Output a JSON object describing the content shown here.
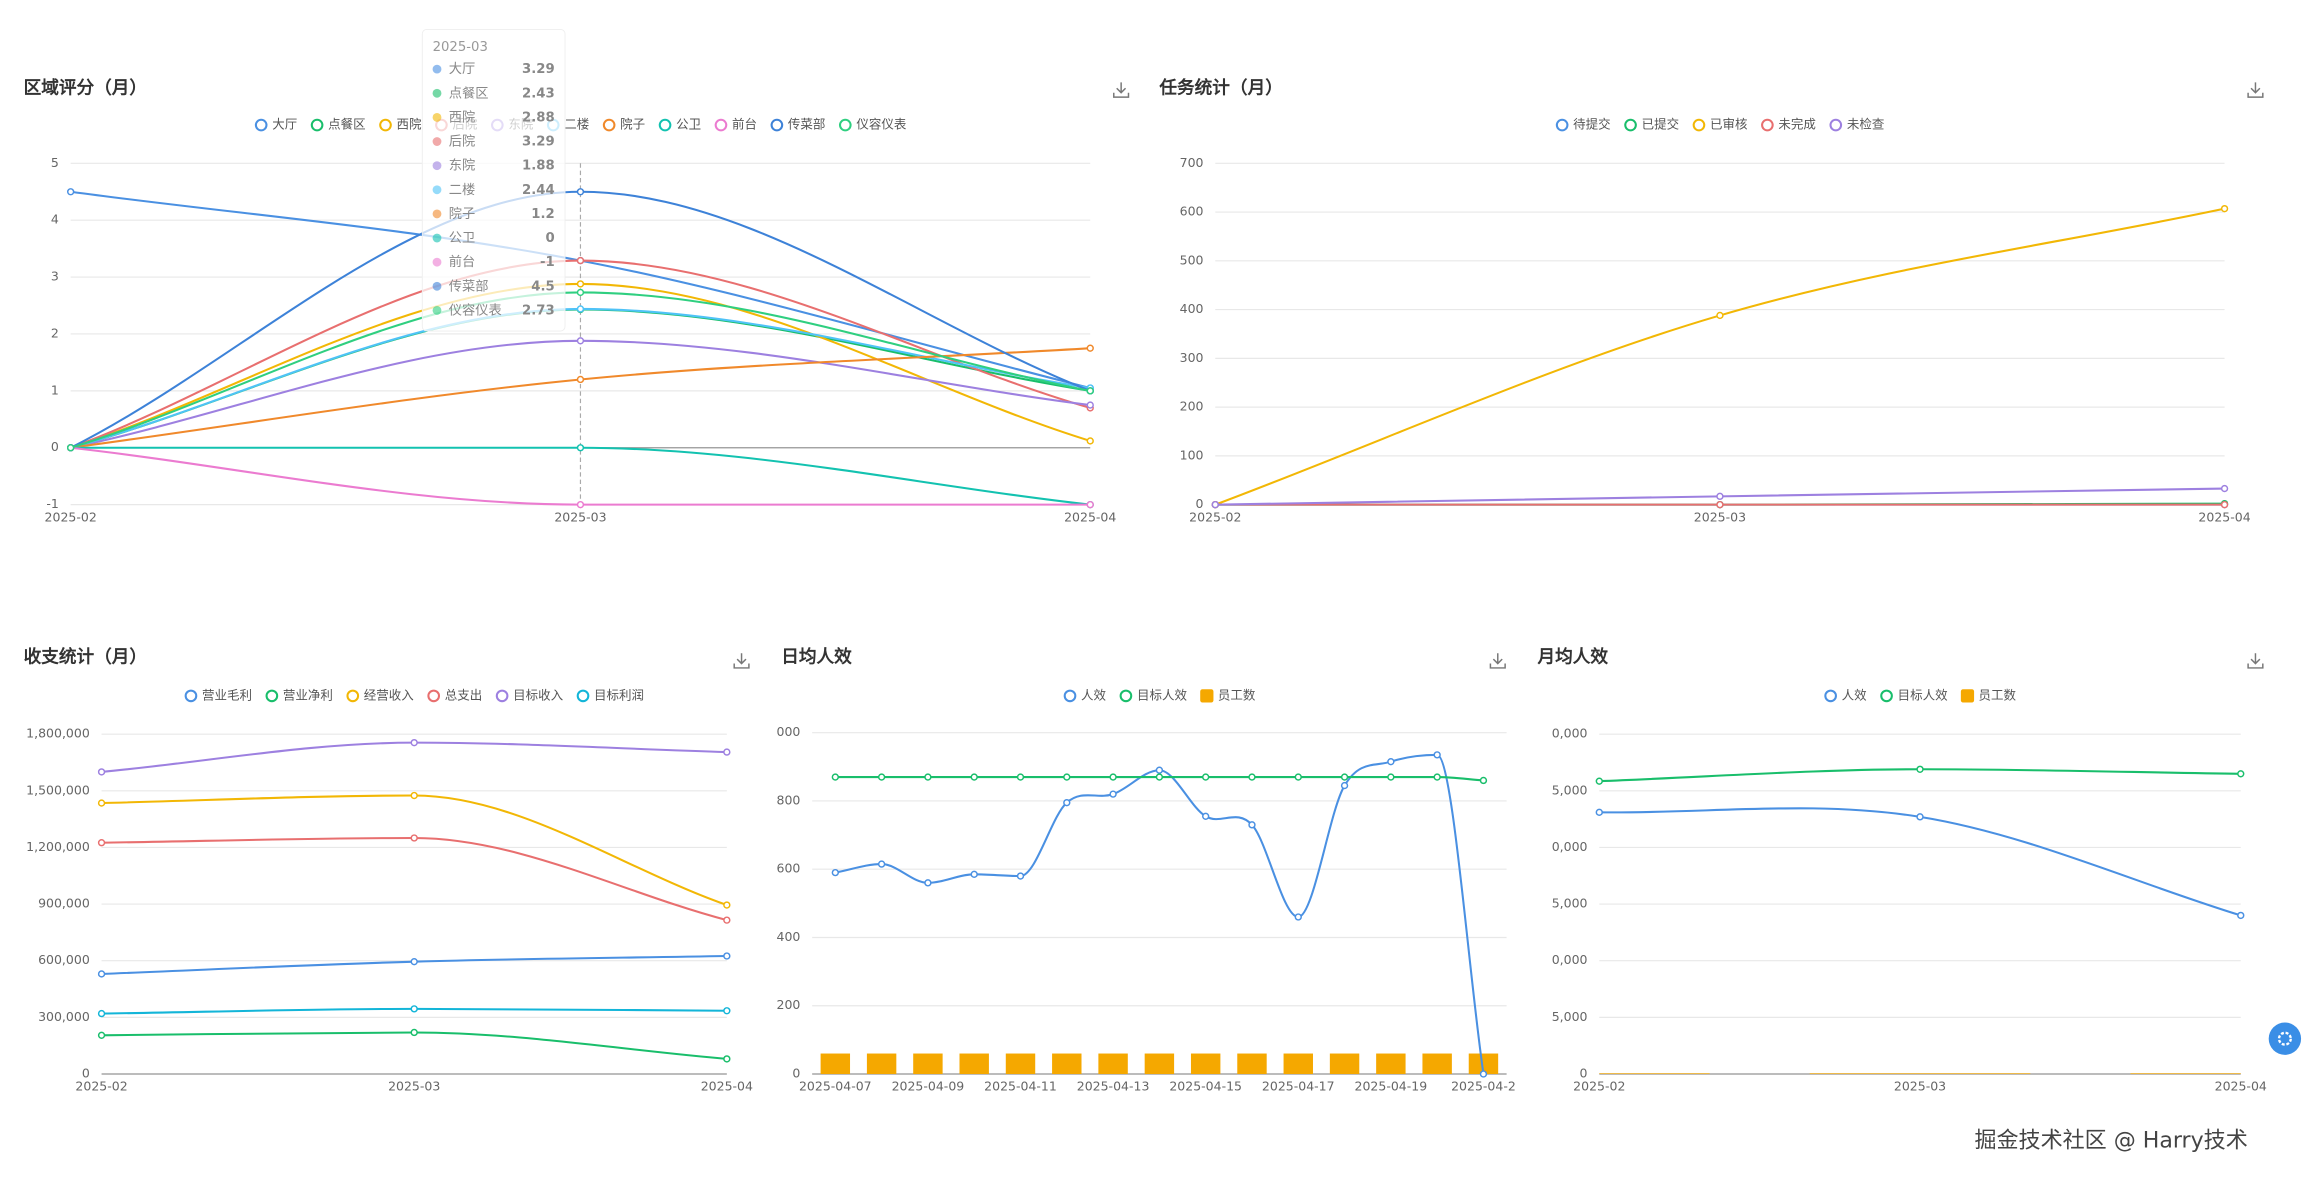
{
  "chart_data": [
    {
      "type": "line",
      "title": "区域评分（月）",
      "categories": [
        "2025-02",
        "2025-03",
        "2025-04"
      ],
      "ylim": [
        -1,
        5
      ],
      "yticks": [
        -1,
        0,
        1,
        2,
        3,
        4,
        5
      ],
      "grid": true,
      "series": [
        {
          "name": "大厅",
          "color": "#4a90e2",
          "values": [
            4.5,
            3.29,
            1.05
          ]
        },
        {
          "name": "点餐区",
          "color": "#19be6b",
          "values": [
            0,
            2.43,
            1.0
          ]
        },
        {
          "name": "西院",
          "color": "#f2b705",
          "values": [
            0,
            2.88,
            0.12
          ]
        },
        {
          "name": "后院",
          "color": "#e86f6f",
          "values": [
            0,
            3.29,
            0.7
          ]
        },
        {
          "name": "东院",
          "color": "#9d80e0",
          "values": [
            0,
            1.88,
            0.75
          ]
        },
        {
          "name": "二楼",
          "color": "#4fc3f7",
          "values": [
            0,
            2.44,
            1.05
          ]
        },
        {
          "name": "院子",
          "color": "#f0892b",
          "values": [
            0,
            1.2,
            1.75
          ]
        },
        {
          "name": "公卫",
          "color": "#13c2b0",
          "values": [
            0,
            0,
            -1
          ]
        },
        {
          "name": "前台",
          "color": "#eb7bd0",
          "values": [
            0,
            -1,
            -1
          ]
        },
        {
          "name": "传菜部",
          "color": "#3d82d8",
          "values": [
            0,
            4.5,
            1.0
          ]
        },
        {
          "name": "仪容仪表",
          "color": "#2fcf80",
          "values": [
            0,
            2.73,
            1.0
          ]
        }
      ]
    },
    {
      "type": "line",
      "title": "任务统计（月）",
      "categories": [
        "2025-02",
        "2025-03",
        "2025-04"
      ],
      "ylim": [
        0,
        700
      ],
      "yticks": [
        0,
        100,
        200,
        300,
        400,
        500,
        600,
        700
      ],
      "grid": true,
      "series": [
        {
          "name": "待提交",
          "color": "#4a90e2",
          "values": [
            0,
            0,
            0
          ]
        },
        {
          "name": "已提交",
          "color": "#19be6b",
          "values": [
            0,
            0,
            2
          ]
        },
        {
          "name": "已审核",
          "color": "#f2b705",
          "values": [
            0,
            388,
            607
          ]
        },
        {
          "name": "未完成",
          "color": "#e86f6f",
          "values": [
            0,
            0,
            0
          ]
        },
        {
          "name": "未检查",
          "color": "#9d80e0",
          "values": [
            0,
            17,
            33
          ]
        }
      ]
    },
    {
      "type": "line",
      "title": "收支统计（月）",
      "categories": [
        "2025-02",
        "2025-03",
        "2025-04"
      ],
      "ylim": [
        0,
        1800000
      ],
      "yticks": [
        0,
        {
          "value": 300000,
          "label": "300,000"
        },
        {
          "value": 600000,
          "label": "600,000"
        },
        {
          "value": 900000,
          "label": "900,000"
        },
        {
          "value": 1200000,
          "label": "1,200,000"
        },
        {
          "value": 1500000,
          "label": "1,500,000"
        },
        {
          "value": 1800000,
          "label": "1,800,000"
        }
      ],
      "grid": true,
      "series": [
        {
          "name": "营业毛利",
          "color": "#4a90e2",
          "values": [
            530000,
            595000,
            625000
          ]
        },
        {
          "name": "营业净利",
          "color": "#19be6b",
          "values": [
            205000,
            220000,
            80000
          ]
        },
        {
          "name": "经营收入",
          "color": "#f2b705",
          "values": [
            1435000,
            1475000,
            895000
          ]
        },
        {
          "name": "总支出",
          "color": "#e86f6f",
          "values": [
            1225000,
            1250000,
            815000
          ]
        },
        {
          "name": "目标收入",
          "color": "#9d80e0",
          "values": [
            1600000,
            1755000,
            1705000
          ]
        },
        {
          "name": "目标利润",
          "color": "#13b5d8",
          "values": [
            320000,
            345000,
            335000
          ]
        }
      ]
    },
    {
      "type": "combo",
      "title": "日均人效",
      "categories": [
        "2025-04-07",
        null,
        "2025-04-09",
        null,
        "2025-04-11",
        null,
        "2025-04-13",
        null,
        "2025-04-15",
        null,
        "2025-04-17",
        null,
        "2025-04-19",
        null,
        "2025-04-2"
      ],
      "ylim": [
        0,
        1000
      ],
      "yticks": [
        0,
        200,
        400,
        600,
        800,
        {
          "value": 1000,
          "label": "000"
        }
      ],
      "grid": true,
      "series": [
        {
          "name": "人效",
          "type": "line",
          "color": "#4a90e2",
          "values": [
            590,
            615,
            560,
            585,
            580,
            795,
            820,
            890,
            755,
            730,
            460,
            845,
            915,
            935,
            0
          ]
        },
        {
          "name": "目标人效",
          "type": "line",
          "color": "#19be6b",
          "values": [
            870,
            870,
            870,
            870,
            870,
            870,
            870,
            870,
            870,
            870,
            870,
            870,
            870,
            870,
            860
          ]
        },
        {
          "name": "员工数",
          "type": "bar",
          "color": "#f5a800",
          "values": [
            60,
            60,
            60,
            60,
            60,
            60,
            60,
            60,
            60,
            60,
            60,
            60,
            60,
            60,
            60
          ]
        }
      ]
    },
    {
      "type": "combo",
      "title": "月均人效",
      "categories": [
        "2025-02",
        "2025-03",
        "2025-04"
      ],
      "ylim": [
        0,
        30000
      ],
      "yticks": [
        0,
        {
          "value": 5000,
          "label": "5,000"
        },
        {
          "value": 10000,
          "label": "0,000"
        },
        {
          "value": 15000,
          "label": "5,000"
        },
        {
          "value": 20000,
          "label": "0,000"
        },
        {
          "value": 25000,
          "label": "5,000"
        },
        {
          "value": 30000,
          "label": "0,000"
        }
      ],
      "grid": true,
      "series": [
        {
          "name": "人效",
          "type": "line",
          "color": "#4a90e2",
          "values": [
            23100,
            22700,
            14000
          ]
        },
        {
          "name": "目标人效",
          "type": "line",
          "color": "#19be6b",
          "values": [
            25850,
            26900,
            26500
          ]
        },
        {
          "name": "员工数",
          "type": "bar",
          "color": "#f5a800",
          "values": [
            60,
            60,
            60
          ]
        }
      ]
    }
  ],
  "watermark": "掘金技术社区 @ Harry技术"
}
